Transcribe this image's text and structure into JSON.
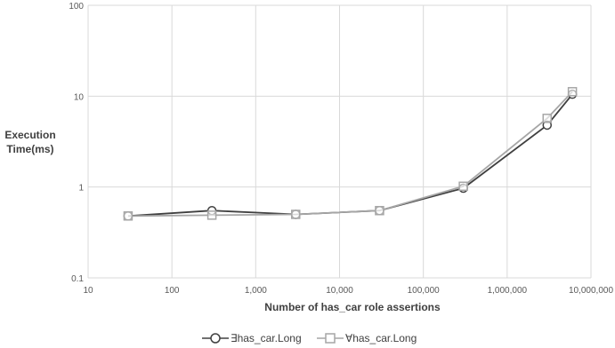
{
  "chart_data": {
    "type": "line",
    "xlabel": "Number of has_car role assertions",
    "ylabel_line1": "Execution",
    "ylabel_line2": "Time(ms)",
    "xscale": "log",
    "yscale": "log",
    "xlim": [
      10,
      10000000
    ],
    "ylim": [
      0.1,
      100
    ],
    "grid": true,
    "legend_position": "bottom",
    "x_ticks": [
      "10",
      "100",
      "1,000",
      "10,000",
      "100,000",
      "1,000,000",
      "10,000,000"
    ],
    "y_ticks": [
      "0.1",
      "1",
      "10",
      "100"
    ],
    "x": [
      30,
      300,
      3000,
      30000,
      300000,
      3000000,
      6000000
    ],
    "series": [
      {
        "name": "∃has_car.Long",
        "marker": "circle",
        "color": "#404040",
        "values": [
          0.48,
          0.55,
          0.5,
          0.55,
          0.97,
          4.8,
          10.5
        ]
      },
      {
        "name": "∀has_car.Long",
        "marker": "square",
        "color": "#a6a6a6",
        "values": [
          0.48,
          0.49,
          0.5,
          0.55,
          1.02,
          5.7,
          11.2
        ]
      }
    ]
  }
}
